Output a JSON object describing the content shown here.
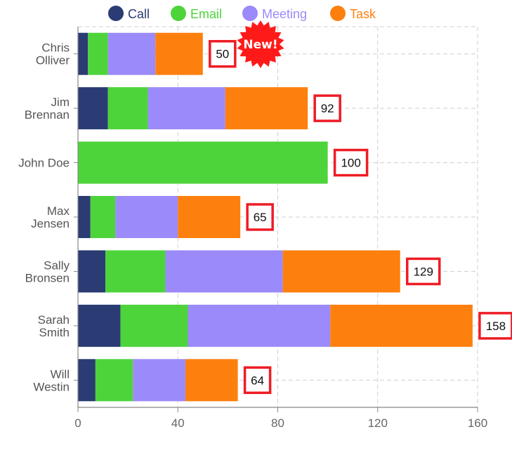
{
  "chart_data": {
    "type": "bar",
    "orientation": "horizontal",
    "stacked": true,
    "categories": [
      [
        "Chris",
        "Olliver"
      ],
      [
        "Jim",
        "Brennan"
      ],
      [
        "John Doe"
      ],
      [
        "Max",
        "Jensen"
      ],
      [
        "Sally",
        "Bronsen"
      ],
      [
        "Sarah",
        "Smith"
      ],
      [
        "Will",
        "Westin"
      ]
    ],
    "series": [
      {
        "name": "Call",
        "color": "#2b3b73",
        "values": [
          4,
          12,
          0,
          5,
          11,
          17,
          7
        ]
      },
      {
        "name": "Email",
        "color": "#4dd43a",
        "values": [
          8,
          16,
          100,
          10,
          24,
          27,
          15
        ]
      },
      {
        "name": "Meeting",
        "color": "#9b8af9",
        "values": [
          19,
          31,
          0,
          25,
          47,
          57,
          21
        ]
      },
      {
        "name": "Task",
        "color": "#fd800e",
        "values": [
          19,
          33,
          0,
          25,
          47,
          57,
          21
        ]
      }
    ],
    "totals": [
      "50",
      "92",
      "100",
      "65",
      "129",
      "158",
      "64"
    ],
    "xlim": [
      0,
      160
    ],
    "xticks": [
      "0",
      "40",
      "80",
      "120",
      "160"
    ],
    "grid": true,
    "legend_position": "top",
    "badge": {
      "text": "New!",
      "color": "#ff1a1a",
      "category_index": 0
    }
  }
}
